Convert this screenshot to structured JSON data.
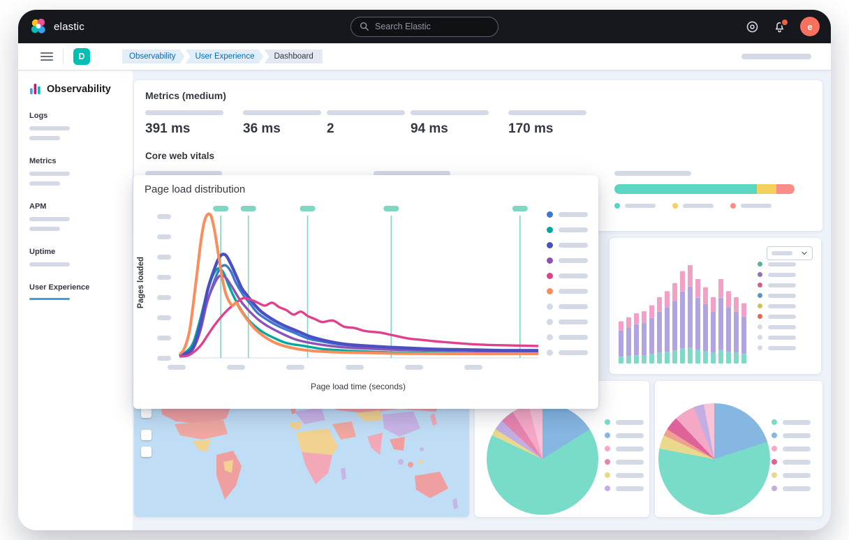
{
  "top_bar": {
    "logo_text": "elastic",
    "search_placeholder": "Search Elastic",
    "avatar_initial": "e",
    "colors": {
      "bar_bg": "#17181d",
      "avatar_bg": "#f8705e",
      "notification_dot": "#f2613f"
    }
  },
  "breadcrumb_bar": {
    "space_initial": "D",
    "space_color": "#00bfb3",
    "breadcrumbs": [
      {
        "label": "Observability",
        "type": "link"
      },
      {
        "label": "User Experience",
        "type": "link"
      },
      {
        "label": "Dashboard",
        "type": "current"
      }
    ]
  },
  "sidebar": {
    "title": "Observability",
    "active_color": "#3aa0df",
    "items": [
      {
        "label": "Logs",
        "skeleton_lines": 2,
        "active": false
      },
      {
        "label": "Metrics",
        "skeleton_lines": 2,
        "active": false
      },
      {
        "label": "APM",
        "skeleton_lines": 2,
        "active": false
      },
      {
        "label": "Uptime",
        "skeleton_lines": 1,
        "active": false
      },
      {
        "label": "User Experience",
        "skeleton_lines": 0,
        "active": true
      }
    ]
  },
  "metrics_panel": {
    "title": "Metrics (medium)",
    "stats": [
      "391 ms",
      "36 ms",
      "2",
      "94 ms",
      "170 ms"
    ],
    "core_web_vitals_title": "Core web vitals"
  },
  "cwv": {
    "columns": 3,
    "bar_segments": [
      {
        "color": "#5bd6c3",
        "pct": 79
      },
      {
        "color": "#f5d05f",
        "pct": 11
      },
      {
        "color": "#fa8c8c",
        "pct": 10
      }
    ],
    "legend_colors": [
      "#5bd6c3",
      "#f5d05f",
      "#fa8c8c"
    ]
  },
  "map": {
    "ocean_color": "#bfddf4",
    "region_palette": [
      "#ef9f9f",
      "#f2d291",
      "#c9b4e6",
      "#f3a8b8"
    ]
  },
  "chart_data": [
    {
      "id": "page-load-distribution",
      "type": "line",
      "title": "Page load distribution",
      "xlabel": "Page load time (seconds)",
      "ylabel": "Pages loaded",
      "axis_note": "axis tick labels and legend labels are loading-skeleton placeholders; point values are relative (0-1) estimates read from the plot",
      "x_range": [
        0,
        1
      ],
      "y_range": [
        0,
        1
      ],
      "marker_color": "#7fd6c2",
      "percentile_markers_x": [
        0.117,
        0.194,
        0.359,
        0.592,
        0.951
      ],
      "y_tick_skeletons": 8,
      "x_tick_skeletons": 6,
      "legend_skeleton_colors": [
        "#3a78d2",
        "#00a99d",
        "#4a50c0",
        "#8c52b8",
        "#e0418e",
        "#fb8d5c",
        "#d3dae6",
        "#d3dae6",
        "#d3dae6",
        "#d3dae6"
      ],
      "series": [
        {
          "name": "series-blue",
          "color": "#3a78d2",
          "width": 3.4,
          "points": [
            [
              0.005,
              0.02
            ],
            [
              0.02,
              0.03
            ],
            [
              0.04,
              0.08
            ],
            [
              0.06,
              0.2
            ],
            [
              0.08,
              0.38
            ],
            [
              0.1,
              0.52
            ],
            [
              0.115,
              0.6
            ],
            [
              0.13,
              0.62
            ],
            [
              0.145,
              0.58
            ],
            [
              0.16,
              0.5
            ],
            [
              0.18,
              0.42
            ],
            [
              0.2,
              0.36
            ],
            [
              0.22,
              0.3
            ],
            [
              0.25,
              0.25
            ],
            [
              0.28,
              0.21
            ],
            [
              0.32,
              0.17
            ],
            [
              0.36,
              0.13
            ],
            [
              0.4,
              0.11
            ],
            [
              0.45,
              0.09
            ],
            [
              0.5,
              0.08
            ],
            [
              0.55,
              0.07
            ],
            [
              0.62,
              0.06
            ],
            [
              0.7,
              0.055
            ],
            [
              0.8,
              0.05
            ],
            [
              0.9,
              0.048
            ],
            [
              1,
              0.045
            ]
          ]
        },
        {
          "name": "series-teal",
          "color": "#00a99d",
          "width": 3.4,
          "points": [
            [
              0.005,
              0.02
            ],
            [
              0.02,
              0.04
            ],
            [
              0.04,
              0.1
            ],
            [
              0.06,
              0.26
            ],
            [
              0.08,
              0.45
            ],
            [
              0.095,
              0.55
            ],
            [
              0.11,
              0.6
            ],
            [
              0.125,
              0.57
            ],
            [
              0.14,
              0.48
            ],
            [
              0.16,
              0.38
            ],
            [
              0.18,
              0.3
            ],
            [
              0.2,
              0.24
            ],
            [
              0.23,
              0.18
            ],
            [
              0.26,
              0.14
            ],
            [
              0.3,
              0.1
            ],
            [
              0.35,
              0.08
            ],
            [
              0.4,
              0.06
            ],
            [
              0.46,
              0.05
            ],
            [
              0.55,
              0.04
            ],
            [
              0.65,
              0.035
            ],
            [
              0.8,
              0.03
            ],
            [
              1,
              0.03
            ]
          ]
        },
        {
          "name": "series-purple",
          "color": "#8c52b8",
          "width": 3.4,
          "points": [
            [
              0.005,
              0.015
            ],
            [
              0.02,
              0.025
            ],
            [
              0.04,
              0.06
            ],
            [
              0.06,
              0.18
            ],
            [
              0.08,
              0.38
            ],
            [
              0.1,
              0.5
            ],
            [
              0.115,
              0.55
            ],
            [
              0.13,
              0.54
            ],
            [
              0.15,
              0.47
            ],
            [
              0.17,
              0.39
            ],
            [
              0.19,
              0.33
            ],
            [
              0.22,
              0.26
            ],
            [
              0.25,
              0.21
            ],
            [
              0.29,
              0.16
            ],
            [
              0.33,
              0.12
            ],
            [
              0.38,
              0.095
            ],
            [
              0.44,
              0.075
            ],
            [
              0.5,
              0.065
            ],
            [
              0.6,
              0.055
            ],
            [
              0.7,
              0.05
            ],
            [
              0.85,
              0.045
            ],
            [
              1,
              0.04
            ]
          ]
        },
        {
          "name": "series-indigo",
          "color": "#4a50c0",
          "width": 4.4,
          "points": [
            [
              0.005,
              0.02
            ],
            [
              0.02,
              0.03
            ],
            [
              0.04,
              0.07
            ],
            [
              0.06,
              0.22
            ],
            [
              0.08,
              0.45
            ],
            [
              0.1,
              0.6
            ],
            [
              0.115,
              0.68
            ],
            [
              0.13,
              0.69
            ],
            [
              0.145,
              0.63
            ],
            [
              0.16,
              0.55
            ],
            [
              0.175,
              0.47
            ],
            [
              0.19,
              0.42
            ],
            [
              0.21,
              0.36
            ],
            [
              0.23,
              0.31
            ],
            [
              0.26,
              0.26
            ],
            [
              0.29,
              0.22
            ],
            [
              0.33,
              0.18
            ],
            [
              0.37,
              0.14
            ],
            [
              0.42,
              0.11
            ],
            [
              0.47,
              0.09
            ],
            [
              0.53,
              0.08
            ],
            [
              0.6,
              0.07
            ],
            [
              0.7,
              0.06
            ],
            [
              0.8,
              0.055
            ],
            [
              0.9,
              0.05
            ],
            [
              1,
              0.05
            ]
          ]
        },
        {
          "name": "series-magenta",
          "color": "#e0418e",
          "width": 3.4,
          "points": [
            [
              0.005,
              0.01
            ],
            [
              0.03,
              0.02
            ],
            [
              0.06,
              0.08
            ],
            [
              0.08,
              0.15
            ],
            [
              0.1,
              0.22
            ],
            [
              0.12,
              0.28
            ],
            [
              0.14,
              0.33
            ],
            [
              0.16,
              0.37
            ],
            [
              0.18,
              0.4
            ],
            [
              0.2,
              0.39
            ],
            [
              0.22,
              0.37
            ],
            [
              0.24,
              0.35
            ],
            [
              0.26,
              0.37
            ],
            [
              0.28,
              0.34
            ],
            [
              0.3,
              0.32
            ],
            [
              0.32,
              0.29
            ],
            [
              0.34,
              0.31
            ],
            [
              0.36,
              0.28
            ],
            [
              0.38,
              0.26
            ],
            [
              0.4,
              0.24
            ],
            [
              0.43,
              0.25
            ],
            [
              0.46,
              0.21
            ],
            [
              0.49,
              0.2
            ],
            [
              0.52,
              0.18
            ],
            [
              0.56,
              0.17
            ],
            [
              0.6,
              0.15
            ],
            [
              0.64,
              0.13
            ],
            [
              0.68,
              0.12
            ],
            [
              0.72,
              0.11
            ],
            [
              0.77,
              0.1
            ],
            [
              0.83,
              0.09
            ],
            [
              0.9,
              0.085
            ],
            [
              1,
              0.08
            ]
          ]
        },
        {
          "name": "series-orange",
          "color": "#fb8d5c",
          "width": 4,
          "points": [
            [
              0.005,
              0.03
            ],
            [
              0.015,
              0.06
            ],
            [
              0.03,
              0.18
            ],
            [
              0.045,
              0.45
            ],
            [
              0.06,
              0.75
            ],
            [
              0.07,
              0.9
            ],
            [
              0.08,
              0.96
            ],
            [
              0.09,
              0.95
            ],
            [
              0.1,
              0.85
            ],
            [
              0.11,
              0.7
            ],
            [
              0.12,
              0.55
            ],
            [
              0.13,
              0.44
            ],
            [
              0.14,
              0.38
            ],
            [
              0.15,
              0.35
            ],
            [
              0.16,
              0.37
            ],
            [
              0.17,
              0.33
            ],
            [
              0.19,
              0.26
            ],
            [
              0.21,
              0.2
            ],
            [
              0.24,
              0.14
            ],
            [
              0.27,
              0.1
            ],
            [
              0.31,
              0.07
            ],
            [
              0.36,
              0.05
            ],
            [
              0.42,
              0.04
            ],
            [
              0.5,
              0.035
            ],
            [
              0.6,
              0.03
            ],
            [
              0.75,
              0.028
            ],
            [
              1,
              0.028
            ]
          ]
        }
      ]
    },
    {
      "id": "page-views-histogram",
      "type": "bar",
      "stacked": true,
      "axis_note": "all labels are loading-skeleton placeholders; bar heights are relative estimates",
      "bar_totals": [
        0.42,
        0.46,
        0.5,
        0.52,
        0.58,
        0.66,
        0.72,
        0.8,
        0.92,
        0.98,
        0.84,
        0.76,
        0.66,
        0.84,
        0.72,
        0.66,
        0.6
      ],
      "segment_fractions": [
        0.16,
        0.62,
        0.22
      ],
      "segment_colors": [
        "#7fd8c8",
        "#b2a4e0",
        "#f2a0c5"
      ],
      "legend_skeleton_colors": [
        "#54b399",
        "#9170b8",
        "#d36086",
        "#6092c0",
        "#d6bf57",
        "#e7664c",
        "#d3dae6",
        "#d3dae6",
        "#d3dae6"
      ]
    },
    {
      "id": "pie-left",
      "type": "pie",
      "axis_note": "labels are loading-skeleton placeholders; percentages estimated from arc angles",
      "slices": [
        {
          "color": "#86b7e2",
          "pct": 16
        },
        {
          "color": "#79dcc8",
          "pct": 66
        },
        {
          "color": "#e9d98c",
          "pct": 2
        },
        {
          "color": "#c2aee3",
          "pct": 3
        },
        {
          "color": "#e684ae",
          "pct": 4
        },
        {
          "color": "#f5a8c6",
          "pct": 5
        },
        {
          "color": "#f9c4d8",
          "pct": 4
        }
      ],
      "legend_skeleton_colors": [
        "#79dcc8",
        "#86b7e2",
        "#f5a8c6",
        "#e684ae",
        "#e9d98c",
        "#c2aee3"
      ]
    },
    {
      "id": "pie-right",
      "type": "pie",
      "axis_note": "labels are loading-skeleton placeholders; percentages estimated from arc angles",
      "slices": [
        {
          "color": "#86b7e2",
          "pct": 20
        },
        {
          "color": "#79dcc8",
          "pct": 58
        },
        {
          "color": "#e9d98c",
          "pct": 4
        },
        {
          "color": "#f0a090",
          "pct": 2
        },
        {
          "color": "#e0629a",
          "pct": 4
        },
        {
          "color": "#f5a8c6",
          "pct": 6
        },
        {
          "color": "#c2aee3",
          "pct": 3
        },
        {
          "color": "#f9c4d8",
          "pct": 3
        }
      ],
      "legend_skeleton_colors": [
        "#79dcc8",
        "#86b7e2",
        "#f5a8c6",
        "#e0629a",
        "#e9d98c",
        "#c2aee3"
      ]
    }
  ]
}
